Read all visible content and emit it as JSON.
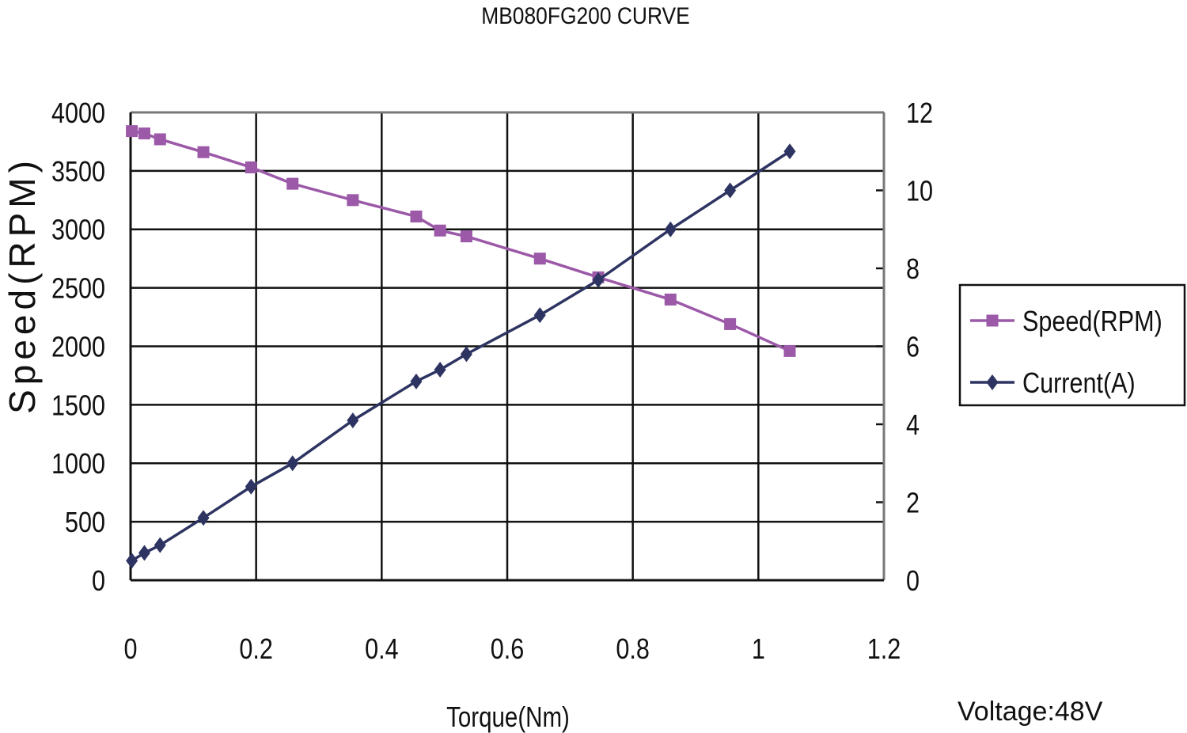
{
  "chart_data": {
    "type": "line",
    "title": "MB080FG200 CURVE",
    "xlabel": "Torque(Nm)",
    "ylabel_left": "Speed(RPM)",
    "ylabel_right": "",
    "annotation": "Voltage:48V",
    "xlim": [
      0,
      1.2
    ],
    "ylim_left": [
      0,
      4000
    ],
    "ylim_right": [
      0,
      12
    ],
    "x_ticks": [
      "0",
      "0.2",
      "0.4",
      "0.6",
      "0.8",
      "1",
      "1.2"
    ],
    "y_ticks_left": [
      "0",
      "500",
      "1000",
      "1500",
      "2000",
      "2500",
      "3000",
      "3500",
      "4000"
    ],
    "y_ticks_right": [
      "0",
      "2",
      "4",
      "6",
      "8",
      "10",
      "12"
    ],
    "grid": true,
    "legend_position": "right",
    "series": [
      {
        "name": "Speed(RPM)",
        "axis": "left",
        "color": "#9b59a8",
        "marker": "square",
        "x": [
          0.002,
          0.022,
          0.047,
          0.116,
          0.192,
          0.258,
          0.354,
          0.455,
          0.493,
          0.535,
          0.652,
          0.745,
          0.86,
          0.955,
          1.05
        ],
        "y": [
          3840,
          3820,
          3770,
          3660,
          3530,
          3390,
          3250,
          3110,
          2990,
          2940,
          2750,
          2590,
          2400,
          2190,
          1960
        ]
      },
      {
        "name": "Current(A)",
        "axis": "right",
        "color": "#2e3461",
        "marker": "diamond",
        "x": [
          0.002,
          0.022,
          0.047,
          0.116,
          0.192,
          0.258,
          0.354,
          0.455,
          0.493,
          0.535,
          0.652,
          0.745,
          0.86,
          0.955,
          1.05
        ],
        "y": [
          0.5,
          0.7,
          0.9,
          1.6,
          2.4,
          3.0,
          4.1,
          5.1,
          5.4,
          5.8,
          6.8,
          7.7,
          9.0,
          10.0,
          11.0
        ]
      }
    ]
  }
}
